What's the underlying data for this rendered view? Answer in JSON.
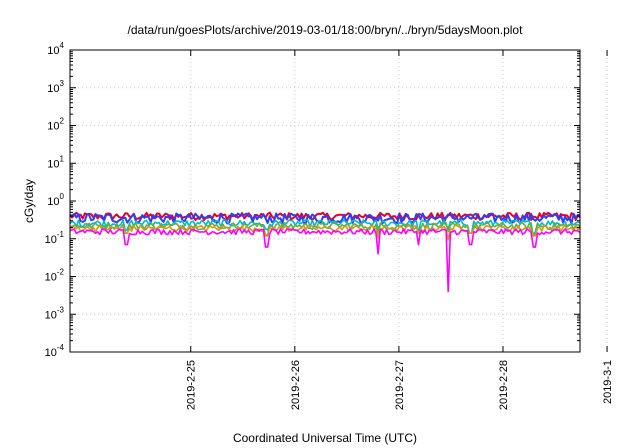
{
  "chart_data": {
    "type": "line",
    "title": "/data/run/goesPlots/archive/2019-03-01/18:00/bryn/../bryn/5daysMoon.plot",
    "xlabel": "Coordinated Universal Time (UTC)",
    "ylabel": "cGy/day",
    "yscale": "log",
    "ylim_exp": [
      -4,
      4
    ],
    "ytick_exps": [
      -4,
      -3,
      -2,
      -1,
      0,
      1,
      2,
      3,
      4
    ],
    "ytick_base": "10",
    "xlim_days": [
      -0.16,
      4.74
    ],
    "xticks": [
      {
        "pos": 1,
        "label": "2019-2-25"
      },
      {
        "pos": 2,
        "label": "2019-2-26"
      },
      {
        "pos": 3,
        "label": "2019-2-27"
      },
      {
        "pos": 4,
        "label": "2019-2-28"
      },
      {
        "pos": 5,
        "label": "2019-3-1"
      }
    ],
    "grid": true,
    "series": [
      {
        "color": "#e6002e",
        "base": 0.4,
        "noise": 0.1
      },
      {
        "color": "#2f3ff0",
        "base": 0.36,
        "noise": 0.12
      },
      {
        "color": "#00b8d4",
        "base": 0.26,
        "noise": 0.06
      },
      {
        "color": "#5fb13d",
        "base": 0.22,
        "noise": 0.05
      },
      {
        "color": "#d09a18",
        "base": 0.19,
        "noise": 0.04
      },
      {
        "color": "#ff00ff",
        "base": 0.155,
        "noise": 0.03
      }
    ],
    "dips": [
      {
        "day": 0.38,
        "value": 0.07
      },
      {
        "day": 1.73,
        "value": 0.06
      },
      {
        "day": 2.8,
        "value": 0.04
      },
      {
        "day": 3.18,
        "value": 0.07
      },
      {
        "day": 3.48,
        "value": 0.004
      },
      {
        "day": 3.69,
        "value": 0.07
      },
      {
        "day": 4.3,
        "value": 0.06
      }
    ]
  }
}
